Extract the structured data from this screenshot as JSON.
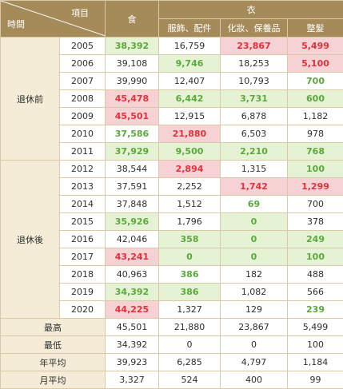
{
  "header": {
    "item_label": "項目",
    "time_label": "時間",
    "food": "食",
    "clothing": "衣",
    "sub": [
      "服飾、配件",
      "化妝、保養品",
      "整髮"
    ]
  },
  "groups": {
    "before": "退休前",
    "after": "退休後"
  },
  "rows": [
    {
      "year": "2005",
      "food": "38,392",
      "acc": "16,759",
      "cos": "23,867",
      "hair": "5,499"
    },
    {
      "year": "2006",
      "food": "39,108",
      "acc": "9,746",
      "cos": "18,253",
      "hair": "5,100"
    },
    {
      "year": "2007",
      "food": "39,990",
      "acc": "12,407",
      "cos": "10,793",
      "hair": "700"
    },
    {
      "year": "2008",
      "food": "45,478",
      "acc": "6,442",
      "cos": "3,731",
      "hair": "600"
    },
    {
      "year": "2009",
      "food": "45,501",
      "acc": "12,915",
      "cos": "6,878",
      "hair": "1,182"
    },
    {
      "year": "2010",
      "food": "37,586",
      "acc": "21,880",
      "cos": "6,503",
      "hair": "978"
    },
    {
      "year": "2011",
      "food": "37,929",
      "acc": "9,500",
      "cos": "2,210",
      "hair": "768"
    },
    {
      "year": "2012",
      "food": "38,544",
      "acc": "2,894",
      "cos": "1,315",
      "hair": "100"
    },
    {
      "year": "2013",
      "food": "37,591",
      "acc": "2,252",
      "cos": "1,742",
      "hair": "1,299"
    },
    {
      "year": "2014",
      "food": "37,848",
      "acc": "1,512",
      "cos": "69",
      "hair": "700"
    },
    {
      "year": "2015",
      "food": "35,926",
      "acc": "1,796",
      "cos": "0",
      "hair": "378"
    },
    {
      "year": "2016",
      "food": "42,046",
      "acc": "358",
      "cos": "0",
      "hair": "249"
    },
    {
      "year": "2017",
      "food": "43,241",
      "acc": "0",
      "cos": "0",
      "hair": "100"
    },
    {
      "year": "2018",
      "food": "40,963",
      "acc": "386",
      "cos": "182",
      "hair": "488"
    },
    {
      "year": "2019",
      "food": "34,392",
      "acc": "386",
      "cos": "1,082",
      "hair": "566"
    },
    {
      "year": "2020",
      "food": "44,225",
      "acc": "1,327",
      "cos": "129",
      "hair": "239"
    }
  ],
  "summary": [
    {
      "label": "最高",
      "food": "45,501",
      "acc": "21,880",
      "cos": "23,867",
      "hair": "5,499"
    },
    {
      "label": "最低",
      "food": "34,392",
      "acc": "0",
      "cos": "0",
      "hair": "100"
    },
    {
      "label": "年平均",
      "food": "39,923",
      "acc": "6,285",
      "cos": "4,797",
      "hair": "1,184"
    },
    {
      "label": "月平均",
      "food": "3,327",
      "acc": "524",
      "cos": "400",
      "hair": "99"
    }
  ],
  "colors": {
    "header_bg": "#a68b5a",
    "label_bg": "#f5ecd7",
    "green_bg": "#e6f2d4",
    "green_text": "#5aa93b",
    "red_bg": "#f7d2d5",
    "red_text": "#e3303a",
    "border": "#d8c9a8"
  }
}
